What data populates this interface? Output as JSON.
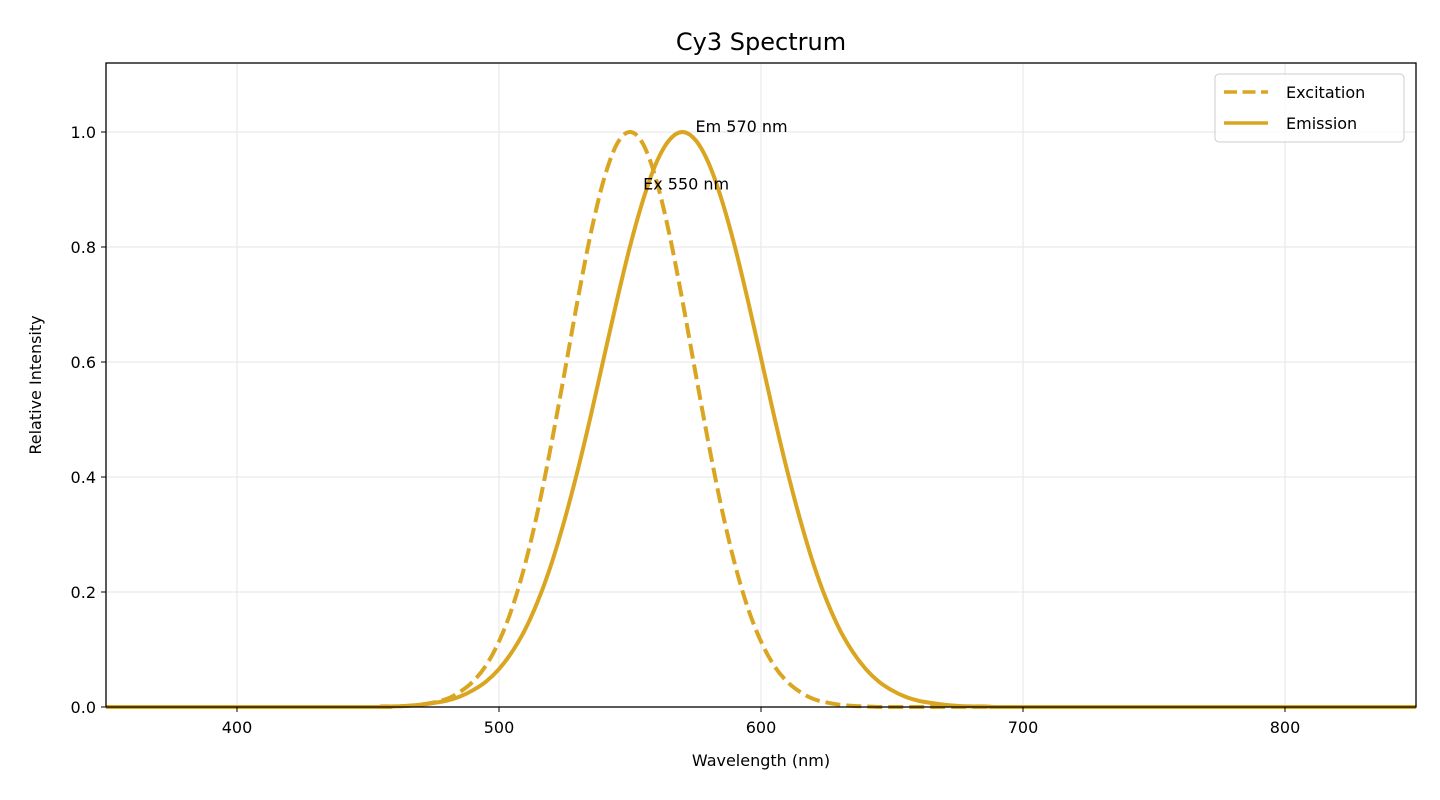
{
  "chart_data": {
    "type": "line",
    "title": "Cy3 Spectrum",
    "xlabel": "Wavelength (nm)",
    "ylabel": "Relative Intensity",
    "xlim": [
      350,
      850
    ],
    "ylim": [
      0,
      1.12
    ],
    "xticks": [
      400,
      500,
      600,
      700,
      800
    ],
    "yticks": [
      0.0,
      0.2,
      0.4,
      0.6,
      0.8,
      1.0
    ],
    "ytick_labels": [
      "0.0",
      "0.2",
      "0.4",
      "0.6",
      "0.8",
      "1.0"
    ],
    "grid": true,
    "legend_position": "top-right",
    "x": [
      350,
      450,
      455,
      460,
      465,
      470,
      475,
      480,
      485,
      490,
      495,
      500,
      505,
      510,
      515,
      520,
      525,
      530,
      535,
      540,
      545,
      550,
      555,
      560,
      565,
      570,
      575,
      580,
      585,
      590,
      595,
      600,
      605,
      610,
      615,
      620,
      625,
      630,
      635,
      640,
      645,
      650,
      655,
      660,
      665,
      670,
      675,
      680,
      685,
      690,
      695,
      700,
      850
    ],
    "series": [
      {
        "name": "Excitation",
        "color": "#DAA520",
        "style": "dashed",
        "values": [
          0,
          0,
          0,
          0.001,
          0.002,
          0.004,
          0.008,
          0.014,
          0.026,
          0.044,
          0.072,
          0.114,
          0.172,
          0.249,
          0.345,
          0.458,
          0.581,
          0.707,
          0.823,
          0.917,
          0.979,
          1,
          0.979,
          0.917,
          0.823,
          0.707,
          0.581,
          0.458,
          0.345,
          0.249,
          0.172,
          0.114,
          0.072,
          0.044,
          0.026,
          0.014,
          0.008,
          0.004,
          0.002,
          0.001,
          0,
          0,
          0,
          0,
          0,
          0,
          0,
          0,
          0,
          0,
          0,
          0,
          0
        ]
      },
      {
        "name": "Emission",
        "color": "#DAA520",
        "style": "solid",
        "values": [
          0,
          0,
          0.001,
          0.001,
          0.002,
          0.004,
          0.007,
          0.011,
          0.018,
          0.029,
          0.044,
          0.066,
          0.096,
          0.135,
          0.186,
          0.249,
          0.325,
          0.411,
          0.506,
          0.607,
          0.707,
          0.801,
          0.882,
          0.946,
          0.986,
          1,
          0.986,
          0.946,
          0.882,
          0.801,
          0.707,
          0.607,
          0.506,
          0.411,
          0.325,
          0.249,
          0.186,
          0.135,
          0.096,
          0.066,
          0.044,
          0.029,
          0.018,
          0.011,
          0.007,
          0.004,
          0.002,
          0.001,
          0.001,
          0,
          0,
          0,
          0
        ]
      }
    ],
    "annotations": [
      {
        "text": "Em 570 nm",
        "x": 575,
        "y": 1.0
      },
      {
        "text": "Ex 550 nm",
        "x": 555,
        "y": 0.9
      }
    ]
  }
}
